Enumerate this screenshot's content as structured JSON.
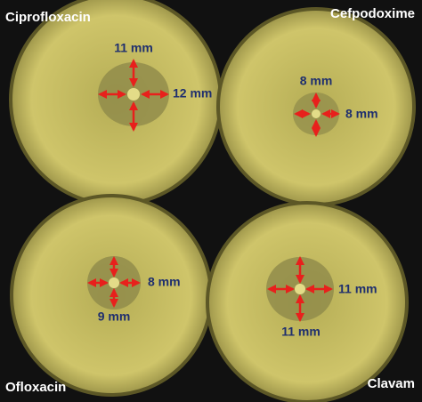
{
  "panels": [
    {
      "label": "Ciprofloxacin",
      "measurements": [
        "11 mm",
        "12 mm"
      ]
    },
    {
      "label": "Cefpodoxime",
      "measurements": [
        "8 mm",
        "8 mm"
      ]
    },
    {
      "label": "Ofloxacin",
      "measurements": [
        "8 mm",
        "9 mm"
      ]
    },
    {
      "label": "Clavam",
      "measurements": [
        "11 mm",
        "11 mm"
      ]
    }
  ]
}
